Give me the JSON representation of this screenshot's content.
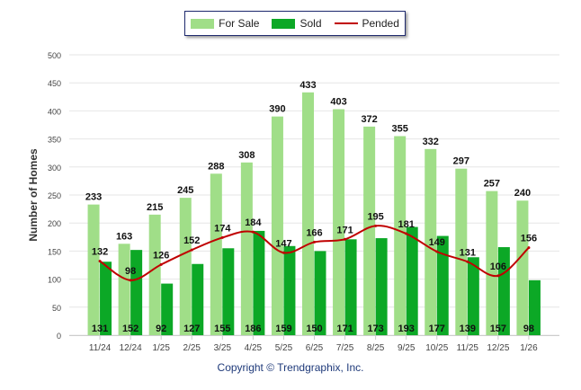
{
  "chart_data": {
    "type": "bar",
    "title": "",
    "xlabel": "",
    "ylabel": "Number of Homes",
    "ylim": [
      0,
      500
    ],
    "yticks": [
      0,
      50,
      100,
      150,
      200,
      250,
      300,
      350,
      400,
      450,
      500
    ],
    "grid": true,
    "legend_position": "top-center",
    "categories": [
      "11/24",
      "12/24",
      "1/25",
      "2/25",
      "3/25",
      "4/25",
      "5/25",
      "6/25",
      "7/25",
      "8/25",
      "9/25",
      "10/25",
      "11/25",
      "12/25",
      "1/26"
    ],
    "series": [
      {
        "name": "For Sale",
        "type": "bar",
        "color": "#a0de88",
        "values": [
          233,
          163,
          215,
          245,
          288,
          308,
          390,
          433,
          403,
          372,
          355,
          332,
          297,
          257,
          240
        ]
      },
      {
        "name": "Sold",
        "type": "bar",
        "color": "#0ca826",
        "values": [
          131,
          152,
          92,
          127,
          155,
          186,
          159,
          150,
          171,
          173,
          193,
          177,
          139,
          157,
          98
        ]
      },
      {
        "name": "Pended",
        "type": "line",
        "color": "#c00000",
        "values": [
          132,
          98,
          126,
          152,
          174,
          184,
          147,
          166,
          171,
          195,
          181,
          149,
          131,
          106,
          156
        ]
      }
    ]
  },
  "footer": {
    "copyright": "Copyright © Trendgraphix, Inc."
  }
}
